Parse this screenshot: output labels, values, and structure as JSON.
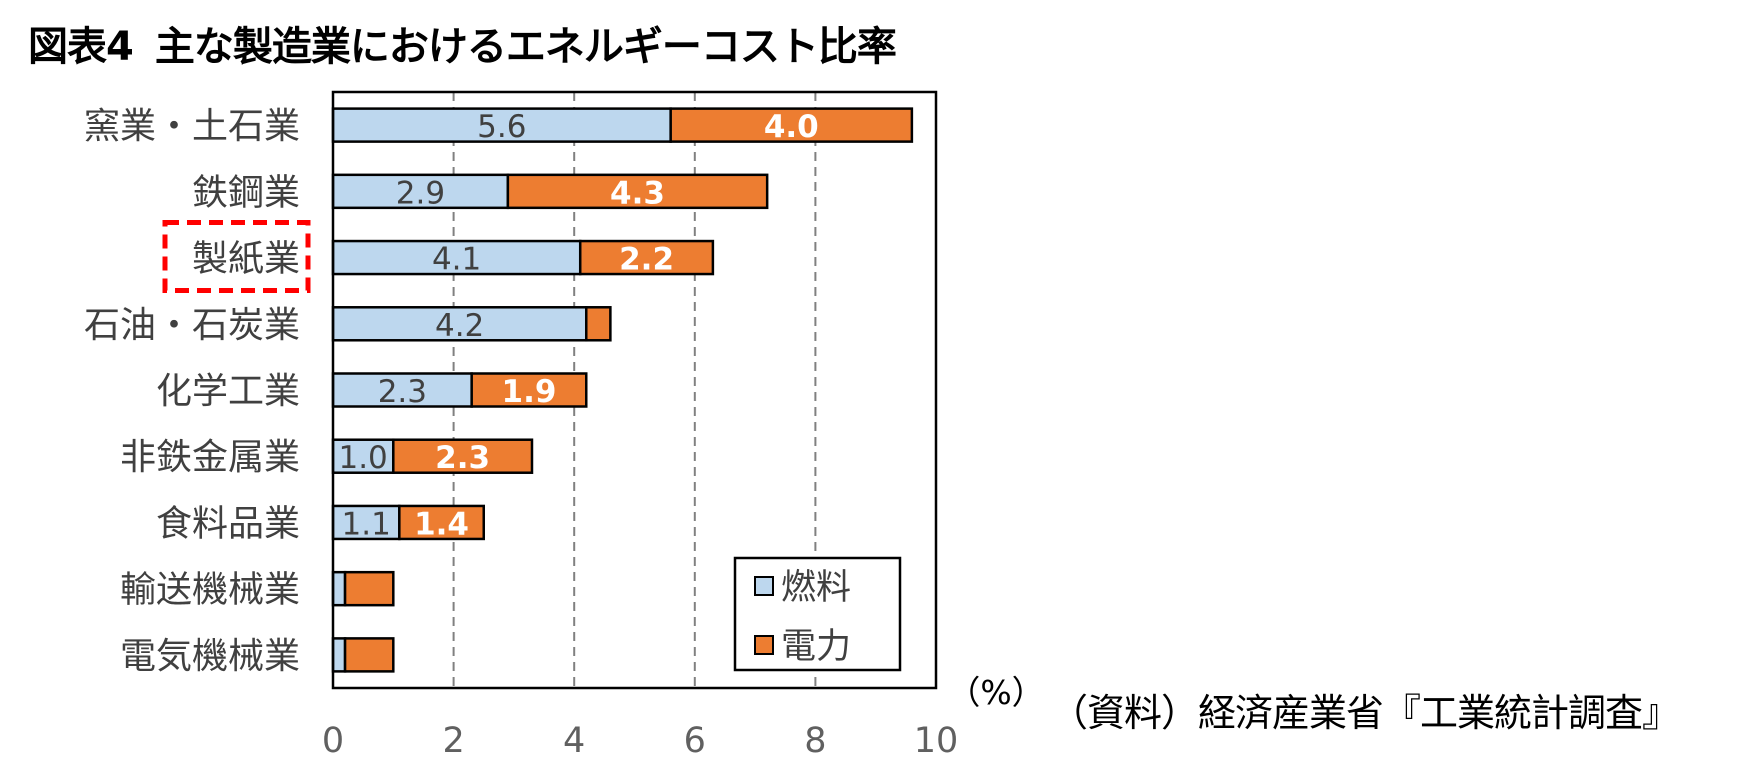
{
  "title": {
    "label": "図表4",
    "text": "主な製造業におけるエネルギーコスト比率"
  },
  "source": "（資料）経済産業省『工業統計調査』",
  "highlight_category": "製紙業",
  "chart_data": {
    "type": "bar",
    "orientation": "horizontal",
    "stacked": true,
    "categories": [
      "窯業・土石業",
      "鉄鋼業",
      "製紙業",
      "石油・石炭業",
      "化学工業",
      "非鉄金属業",
      "食料品業",
      "輸送機械業",
      "電気機械業"
    ],
    "series": [
      {
        "name": "燃料",
        "color": "#BDD7EE",
        "values": [
          5.6,
          2.9,
          4.1,
          4.2,
          2.3,
          1.0,
          1.1,
          0.2,
          0.2
        ],
        "labels": [
          "5.6",
          "2.9",
          "4.1",
          "4.2",
          "2.3",
          "1.0",
          "1.1",
          "",
          ""
        ]
      },
      {
        "name": "電力",
        "color": "#ED7D31",
        "values": [
          4.0,
          4.3,
          2.2,
          0.4,
          1.9,
          2.3,
          1.4,
          0.8,
          0.8
        ],
        "labels": [
          "4.0",
          "4.3",
          "2.2",
          "",
          "1.9",
          "2.3",
          "1.4",
          "",
          ""
        ]
      }
    ],
    "xlim": [
      0,
      10
    ],
    "xticks": [
      "0",
      "2",
      "4",
      "6",
      "8",
      "10"
    ],
    "x_unit_label": "（%）",
    "grid": "vertical dashed",
    "legend_position": "bottom-right"
  }
}
